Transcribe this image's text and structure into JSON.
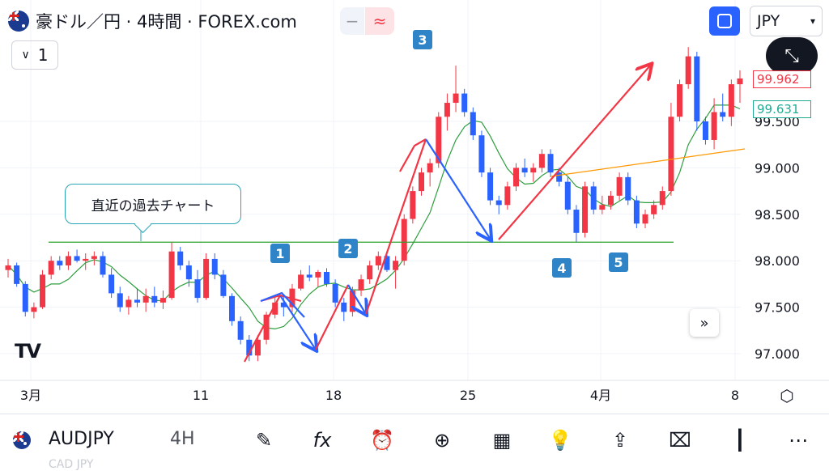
{
  "header": {
    "title": "豪ドル／円 · 4時間 · FOREX.com",
    "toggle_left": "−",
    "toggle_right": "≈",
    "currency": "JPY",
    "collapse_value": "1"
  },
  "annotations": {
    "callout": "直近の過去チャート",
    "labels": [
      "1",
      "2",
      "3",
      "4",
      "5"
    ]
  },
  "price_labels": {
    "last": "99.962",
    "ma": "99.631"
  },
  "chart_data": {
    "type": "candlestick",
    "symbol": "AUDJPY",
    "timeframe": "4H",
    "y_ticks": [
      "97.000",
      "97.500",
      "98.000",
      "98.500",
      "99.000",
      "99.500"
    ],
    "x_ticks": [
      "3月",
      "11",
      "18",
      "25",
      "4月",
      "8"
    ],
    "ylim": [
      96.85,
      100.35
    ],
    "candles": [
      [
        97.9,
        98.02,
        97.82,
        97.95
      ],
      [
        97.95,
        97.98,
        97.72,
        97.75
      ],
      [
        97.75,
        97.78,
        97.4,
        97.45
      ],
      [
        97.45,
        97.55,
        97.38,
        97.5
      ],
      [
        97.5,
        97.9,
        97.48,
        97.85
      ],
      [
        97.85,
        98.05,
        97.8,
        98.0
      ],
      [
        98.0,
        98.05,
        97.9,
        97.95
      ],
      [
        97.95,
        98.1,
        97.9,
        98.05
      ],
      [
        98.05,
        98.12,
        97.98,
        98.0
      ],
      [
        98.0,
        98.08,
        97.9,
        98.02
      ],
      [
        98.02,
        98.1,
        97.95,
        98.05
      ],
      [
        98.05,
        98.1,
        97.82,
        97.85
      ],
      [
        97.85,
        97.92,
        97.6,
        97.65
      ],
      [
        97.65,
        97.72,
        97.45,
        97.5
      ],
      [
        97.5,
        97.62,
        97.42,
        97.58
      ],
      [
        97.58,
        97.7,
        97.5,
        97.55
      ],
      [
        97.55,
        97.7,
        97.45,
        97.62
      ],
      [
        97.62,
        97.72,
        97.5,
        97.55
      ],
      [
        97.55,
        97.68,
        97.48,
        97.6
      ],
      [
        97.6,
        98.2,
        97.58,
        98.1
      ],
      [
        98.1,
        98.15,
        97.9,
        97.95
      ],
      [
        97.95,
        98.0,
        97.72,
        97.8
      ],
      [
        97.8,
        97.9,
        97.55,
        97.6
      ],
      [
        97.6,
        98.08,
        97.58,
        98.02
      ],
      [
        98.02,
        98.08,
        97.8,
        97.85
      ],
      [
        97.85,
        97.9,
        97.6,
        97.62
      ],
      [
        97.62,
        97.65,
        97.3,
        97.35
      ],
      [
        97.35,
        97.4,
        97.1,
        97.15
      ],
      [
        97.15,
        97.2,
        96.92,
        96.98
      ],
      [
        96.98,
        97.2,
        96.92,
        97.15
      ],
      [
        97.15,
        97.45,
        97.1,
        97.42
      ],
      [
        97.42,
        97.6,
        97.38,
        97.55
      ],
      [
        97.55,
        97.62,
        97.4,
        97.5
      ],
      [
        97.5,
        97.75,
        97.45,
        97.7
      ],
      [
        97.7,
        97.9,
        97.68,
        97.85
      ],
      [
        97.85,
        97.95,
        97.78,
        97.82
      ],
      [
        97.82,
        97.9,
        97.72,
        97.88
      ],
      [
        97.88,
        97.92,
        97.72,
        97.75
      ],
      [
        97.75,
        97.8,
        97.5,
        97.55
      ],
      [
        97.55,
        97.6,
        97.35,
        97.45
      ],
      [
        97.45,
        97.72,
        97.4,
        97.68
      ],
      [
        97.68,
        97.85,
        97.62,
        97.8
      ],
      [
        97.8,
        98.0,
        97.75,
        97.95
      ],
      [
        97.95,
        98.1,
        97.9,
        98.05
      ],
      [
        98.05,
        98.1,
        97.88,
        97.9
      ],
      [
        97.9,
        98.05,
        97.7,
        98.0
      ],
      [
        98.0,
        98.5,
        97.95,
        98.45
      ],
      [
        98.45,
        98.8,
        98.4,
        98.75
      ],
      [
        98.75,
        99.0,
        98.7,
        98.95
      ],
      [
        98.95,
        99.1,
        98.8,
        99.05
      ],
      [
        99.05,
        99.6,
        99.0,
        99.55
      ],
      [
        99.55,
        99.8,
        99.4,
        99.7
      ],
      [
        99.7,
        100.1,
        99.6,
        99.8
      ],
      [
        99.8,
        99.85,
        99.55,
        99.6
      ],
      [
        99.6,
        99.65,
        99.3,
        99.35
      ],
      [
        99.35,
        99.4,
        98.9,
        98.95
      ],
      [
        98.95,
        99.0,
        98.6,
        98.65
      ],
      [
        98.65,
        98.7,
        98.5,
        98.6
      ],
      [
        98.6,
        98.85,
        98.55,
        98.8
      ],
      [
        98.8,
        99.05,
        98.75,
        99.0
      ],
      [
        99.0,
        99.1,
        98.9,
        98.95
      ],
      [
        98.95,
        99.05,
        98.85,
        99.0
      ],
      [
        99.0,
        99.2,
        98.95,
        99.15
      ],
      [
        99.15,
        99.2,
        98.9,
        98.95
      ],
      [
        98.95,
        99.0,
        98.8,
        98.85
      ],
      [
        98.85,
        98.9,
        98.5,
        98.55
      ],
      [
        98.55,
        98.6,
        98.2,
        98.3
      ],
      [
        98.3,
        98.85,
        98.25,
        98.8
      ],
      [
        98.8,
        98.85,
        98.5,
        98.55
      ],
      [
        98.55,
        98.7,
        98.5,
        98.6
      ],
      [
        98.6,
        98.75,
        98.55,
        98.7
      ],
      [
        98.7,
        98.95,
        98.65,
        98.9
      ],
      [
        98.9,
        98.95,
        98.6,
        98.65
      ],
      [
        98.65,
        98.7,
        98.35,
        98.4
      ],
      [
        98.4,
        98.55,
        98.35,
        98.5
      ],
      [
        98.5,
        98.65,
        98.45,
        98.6
      ],
      [
        98.6,
        98.8,
        98.55,
        98.75
      ],
      [
        98.75,
        99.7,
        98.7,
        99.55
      ],
      [
        99.55,
        99.95,
        99.5,
        99.9
      ],
      [
        99.9,
        100.3,
        99.85,
        100.2
      ],
      [
        100.2,
        100.25,
        99.4,
        99.5
      ],
      [
        99.5,
        99.55,
        99.25,
        99.3
      ],
      [
        99.3,
        99.75,
        99.2,
        99.6
      ],
      [
        99.6,
        99.8,
        99.5,
        99.55
      ],
      [
        99.55,
        99.95,
        99.45,
        99.9
      ],
      [
        99.9,
        100.05,
        99.7,
        99.962
      ]
    ]
  },
  "bottom_bar": {
    "symbol": "AUDJPY",
    "timeframe": "4H",
    "ghost_text": "CAD JPY"
  }
}
